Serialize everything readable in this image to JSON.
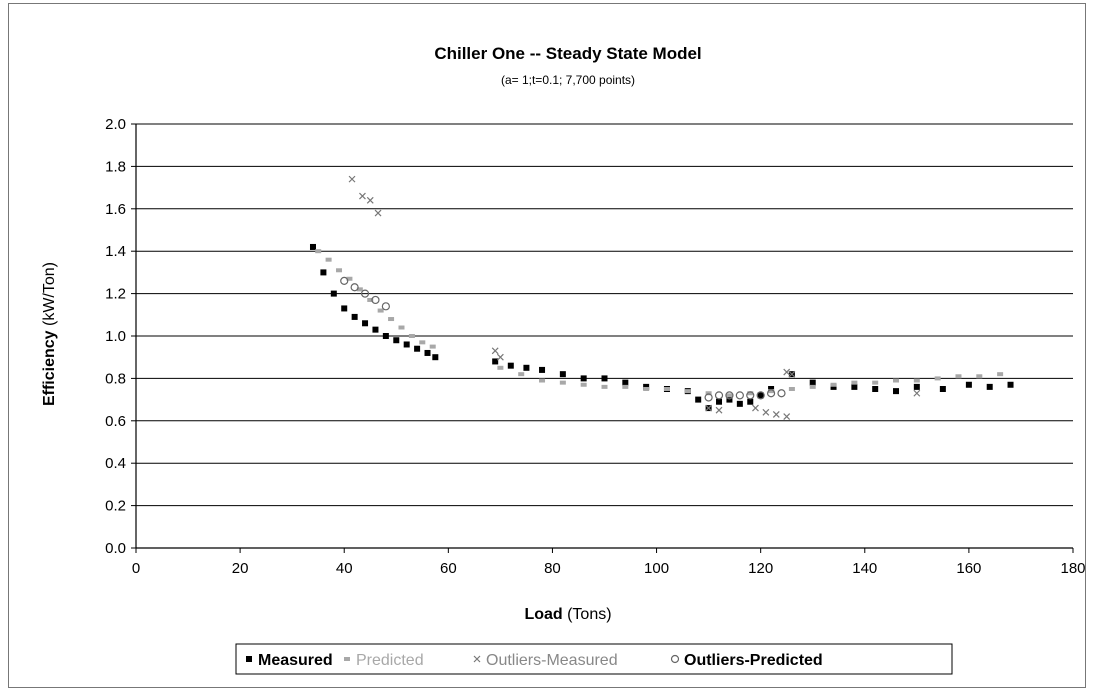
{
  "chart_data": {
    "type": "scatter",
    "title": "Chiller One -- Steady State Model",
    "subtitle": "(a= 1;t=0.1; 7,700 points)",
    "xlabel": {
      "bold": "Load",
      "rest": " (Tons)"
    },
    "ylabel": {
      "bold": "Efficiency",
      "rest": " (kW/Ton)"
    },
    "xlim": [
      0,
      180
    ],
    "ylim": [
      0,
      2.0
    ],
    "xticks": [
      "0",
      "20",
      "40",
      "60",
      "80",
      "100",
      "120",
      "140",
      "160",
      "180"
    ],
    "yticks": [
      "0.0",
      "0.2",
      "0.4",
      "0.6",
      "0.8",
      "1.0",
      "1.2",
      "1.4",
      "1.6",
      "1.8",
      "2.0"
    ],
    "grid": "horizontal",
    "legend_position": "bottom",
    "series": [
      {
        "name": "Measured",
        "marker": "square",
        "color": "#000000",
        "x": [
          34,
          36,
          38,
          40,
          42,
          44,
          46,
          48,
          50,
          52,
          54,
          56,
          57.5,
          69,
          72,
          75,
          78,
          82,
          86,
          90,
          94,
          98,
          102,
          106,
          108,
          110,
          112,
          114,
          116,
          118,
          120,
          122,
          126,
          130,
          134,
          138,
          142,
          146,
          150,
          155,
          160,
          164,
          168
        ],
        "y": [
          1.42,
          1.3,
          1.2,
          1.13,
          1.09,
          1.06,
          1.03,
          1.0,
          0.98,
          0.96,
          0.94,
          0.92,
          0.9,
          0.88,
          0.86,
          0.85,
          0.84,
          0.82,
          0.8,
          0.8,
          0.78,
          0.76,
          0.75,
          0.74,
          0.7,
          0.66,
          0.69,
          0.7,
          0.68,
          0.69,
          0.72,
          0.75,
          0.82,
          0.78,
          0.76,
          0.76,
          0.75,
          0.74,
          0.76,
          0.75,
          0.77,
          0.76,
          0.77
        ]
      },
      {
        "name": "Predicted",
        "marker": "dot",
        "color": "#a8a8a8",
        "x": [
          35,
          37,
          39,
          41,
          43,
          45,
          47,
          49,
          51,
          53,
          55,
          57,
          70,
          74,
          78,
          82,
          86,
          90,
          94,
          98,
          102,
          106,
          110,
          114,
          118,
          122,
          126,
          130,
          134,
          138,
          142,
          146,
          150,
          154,
          158,
          162,
          166
        ],
        "y": [
          1.4,
          1.36,
          1.31,
          1.27,
          1.22,
          1.17,
          1.12,
          1.08,
          1.04,
          1.0,
          0.97,
          0.95,
          0.85,
          0.82,
          0.79,
          0.78,
          0.77,
          0.76,
          0.76,
          0.75,
          0.75,
          0.74,
          0.73,
          0.72,
          0.73,
          0.74,
          0.75,
          0.76,
          0.77,
          0.78,
          0.78,
          0.79,
          0.79,
          0.8,
          0.81,
          0.81,
          0.82
        ]
      },
      {
        "name": "Outliers-Measured",
        "marker": "x",
        "color": "#777777",
        "x": [
          41.5,
          43.5,
          45,
          46.5,
          69,
          70,
          125,
          126,
          110,
          112,
          119,
          121,
          123,
          125,
          150
        ],
        "y": [
          1.74,
          1.66,
          1.64,
          1.58,
          0.93,
          0.9,
          0.83,
          0.82,
          0.66,
          0.65,
          0.66,
          0.64,
          0.63,
          0.62,
          0.73
        ]
      },
      {
        "name": "Outliers-Predicted",
        "marker": "circle",
        "color": "#666666",
        "x": [
          40,
          42,
          44,
          46,
          48,
          110,
          112,
          114,
          116,
          118,
          120,
          122,
          124
        ],
        "y": [
          1.26,
          1.23,
          1.2,
          1.17,
          1.14,
          0.71,
          0.72,
          0.72,
          0.72,
          0.72,
          0.72,
          0.73,
          0.73
        ]
      }
    ]
  }
}
